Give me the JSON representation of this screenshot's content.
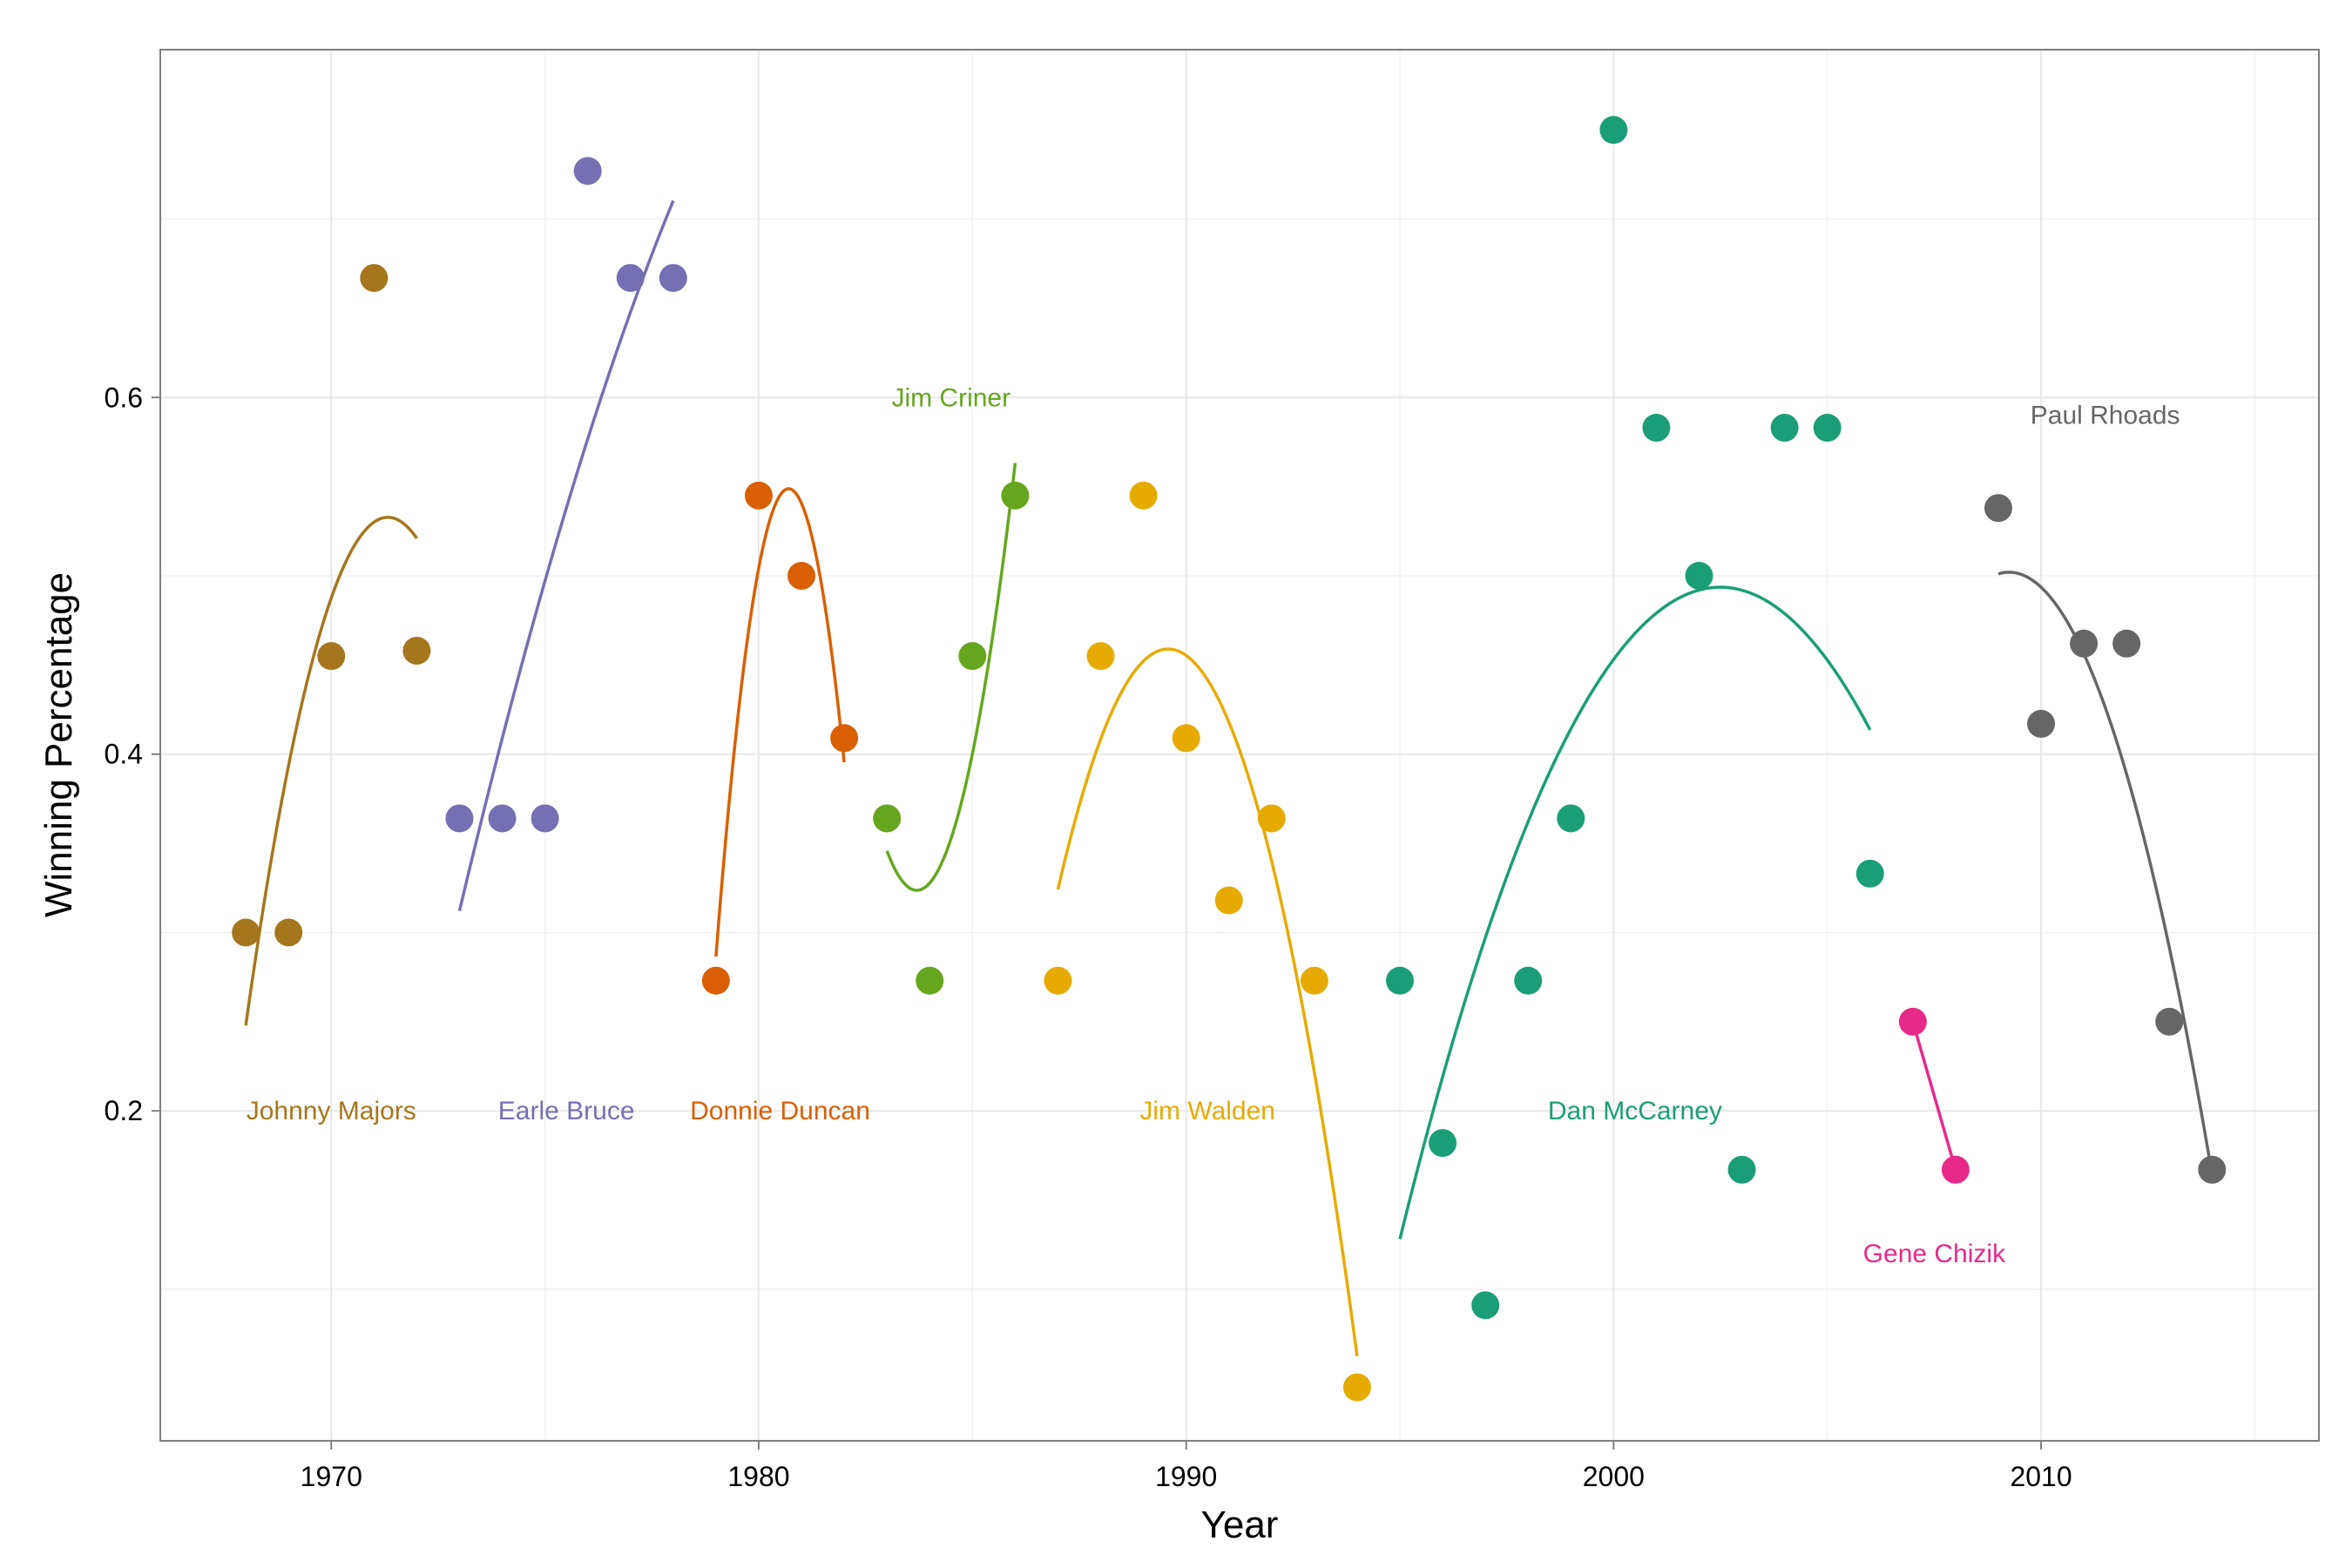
{
  "chart_data": {
    "type": "scatter",
    "xlabel": "Year",
    "ylabel": "Winning Percentage",
    "xlim": [
      1966,
      2016.5
    ],
    "ylim": [
      0.015,
      0.795
    ],
    "x_ticks": [
      1970,
      1980,
      1990,
      2000,
      2010
    ],
    "x_tick_labels": [
      "1970",
      "1980",
      "1990",
      "2000",
      "2010"
    ],
    "y_ticks": [
      0.2,
      0.4,
      0.6
    ],
    "y_tick_labels": [
      "0.2",
      "0.4",
      "0.6"
    ],
    "x_minor_ticks": [
      1965,
      1975,
      1985,
      1995,
      2005,
      2015
    ],
    "y_minor_ticks": [
      0.1,
      0.3,
      0.5,
      0.7
    ],
    "grid": true,
    "legend": "none",
    "series": [
      {
        "name": "Johnny Majors",
        "color": "#A6761D",
        "points": [
          [
            1968,
            0.3
          ],
          [
            1969,
            0.3
          ],
          [
            1970,
            0.455
          ],
          [
            1971,
            0.667
          ],
          [
            1972,
            0.458
          ]
        ],
        "label_pos": [
          1970,
          0.2
        ]
      },
      {
        "name": "Earle Bruce",
        "color": "#7570B3",
        "points": [
          [
            1973,
            0.364
          ],
          [
            1974,
            0.364
          ],
          [
            1975,
            0.364
          ],
          [
            1976,
            0.727
          ],
          [
            1977,
            0.667
          ],
          [
            1978,
            0.667
          ]
        ],
        "label_pos": [
          1975.5,
          0.2
        ]
      },
      {
        "name": "Donnie Duncan",
        "color": "#D95F02",
        "points": [
          [
            1979,
            0.273
          ],
          [
            1980,
            0.545
          ],
          [
            1981,
            0.5
          ],
          [
            1982,
            0.409
          ]
        ],
        "label_pos": [
          1980.5,
          0.2
        ]
      },
      {
        "name": "Jim Criner",
        "color": "#66A61E",
        "points": [
          [
            1983,
            0.364
          ],
          [
            1984,
            0.273
          ],
          [
            1985,
            0.455
          ],
          [
            1986,
            0.545
          ]
        ],
        "label_pos": [
          1984.5,
          0.6
        ]
      },
      {
        "name": "Jim Walden",
        "color": "#E6AB02",
        "points": [
          [
            1987,
            0.273
          ],
          [
            1988,
            0.455
          ],
          [
            1989,
            0.545
          ],
          [
            1990,
            0.409
          ],
          [
            1991,
            0.318
          ],
          [
            1992,
            0.364
          ],
          [
            1993,
            0.273
          ],
          [
            1994,
            0.045
          ]
        ],
        "label_pos": [
          1990.5,
          0.2
        ]
      },
      {
        "name": "Dan McCarney",
        "color": "#1B9E77",
        "points": [
          [
            1995,
            0.273
          ],
          [
            1996,
            0.182
          ],
          [
            1997,
            0.091
          ],
          [
            1998,
            0.273
          ],
          [
            1999,
            0.364
          ],
          [
            2000,
            0.75
          ],
          [
            2001,
            0.583
          ],
          [
            2002,
            0.5
          ],
          [
            2003,
            0.167
          ],
          [
            2004,
            0.583
          ],
          [
            2005,
            0.583
          ],
          [
            2006,
            0.333
          ]
        ],
        "label_pos": [
          2000.5,
          0.2
        ]
      },
      {
        "name": "Gene Chizik",
        "color": "#E7298A",
        "points": [
          [
            2007,
            0.25
          ],
          [
            2008,
            0.167
          ]
        ],
        "label_pos": [
          2007.5,
          0.12
        ]
      },
      {
        "name": "Paul Rhoads",
        "color": "#666666",
        "points": [
          [
            2009,
            0.538
          ],
          [
            2010,
            0.417
          ],
          [
            2011,
            0.462
          ],
          [
            2012,
            0.462
          ],
          [
            2013,
            0.25
          ],
          [
            2014,
            0.167
          ]
        ],
        "label_pos": [
          2011.5,
          0.59
        ]
      }
    ]
  }
}
